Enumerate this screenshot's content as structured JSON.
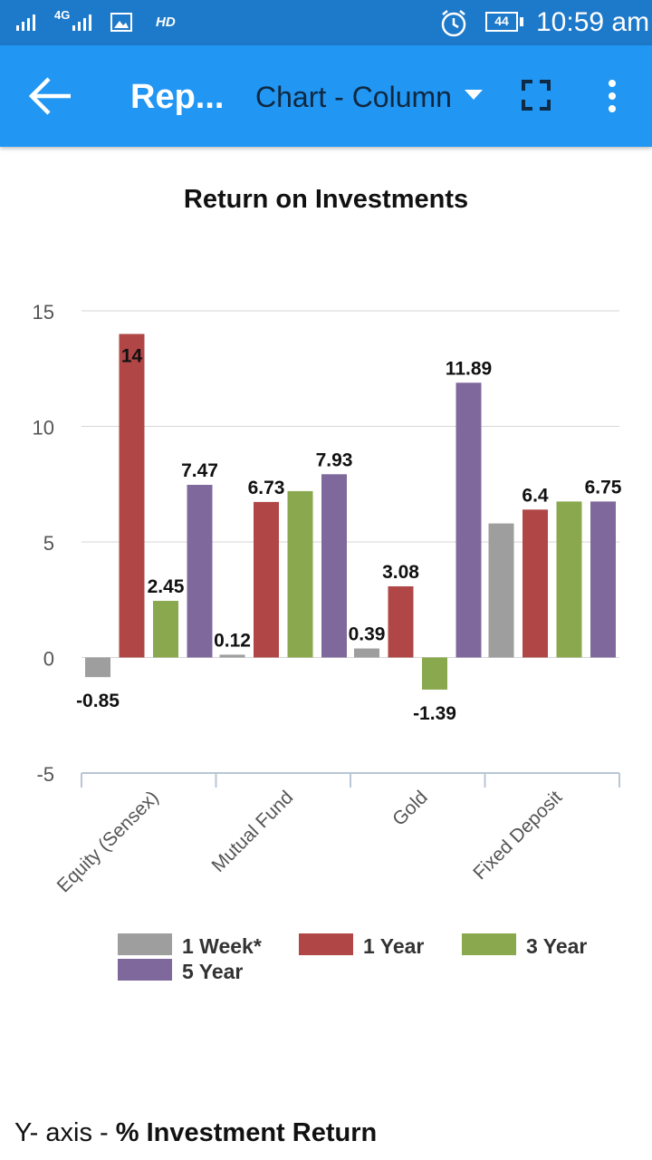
{
  "status_bar": {
    "network": "4G",
    "hd": "HD",
    "battery": "44",
    "time": "10:59 am"
  },
  "app_bar": {
    "title": "Rep...",
    "chart_type_selector": "Chart - Column",
    "icons": [
      "back-arrow-icon",
      "dropdown-triangle-icon",
      "fullscreen-icon",
      "overflow-menu-icon"
    ]
  },
  "footer": {
    "prefix": "Y- axis - ",
    "bold": "% Investment Return"
  },
  "chart_data": {
    "type": "bar",
    "title": "Return on Investments",
    "xlabel": "",
    "ylabel": "",
    "ylim": [
      -5,
      15
    ],
    "yticks": [
      -5,
      0,
      5,
      10,
      15
    ],
    "grid": true,
    "legend_position": "bottom",
    "categories": [
      "Equity (Sensex)",
      "Mutual Fund",
      "Gold",
      "Fixed Deposit"
    ],
    "series": [
      {
        "name": "1 Week*",
        "color": "#9e9e9e",
        "values": [
          -0.85,
          0.12,
          0.39,
          5.8
        ],
        "labels": [
          "-0.85",
          "0.12",
          "0.39",
          ""
        ]
      },
      {
        "name": "1 Year",
        "color": "#b04646",
        "values": [
          14,
          6.73,
          3.08,
          6.4
        ],
        "labels": [
          "14",
          "6.73",
          "3.08",
          "6.4"
        ]
      },
      {
        "name": "3 Year",
        "color": "#8aa84e",
        "values": [
          2.45,
          7.2,
          -1.39,
          6.75
        ],
        "labels": [
          "2.45",
          "",
          "-1.39",
          ""
        ]
      },
      {
        "name": "5 Year",
        "color": "#7f689c",
        "values": [
          7.47,
          7.93,
          11.89,
          6.75
        ],
        "labels": [
          "7.47",
          "7.93",
          "11.89",
          "6.75"
        ]
      }
    ]
  }
}
